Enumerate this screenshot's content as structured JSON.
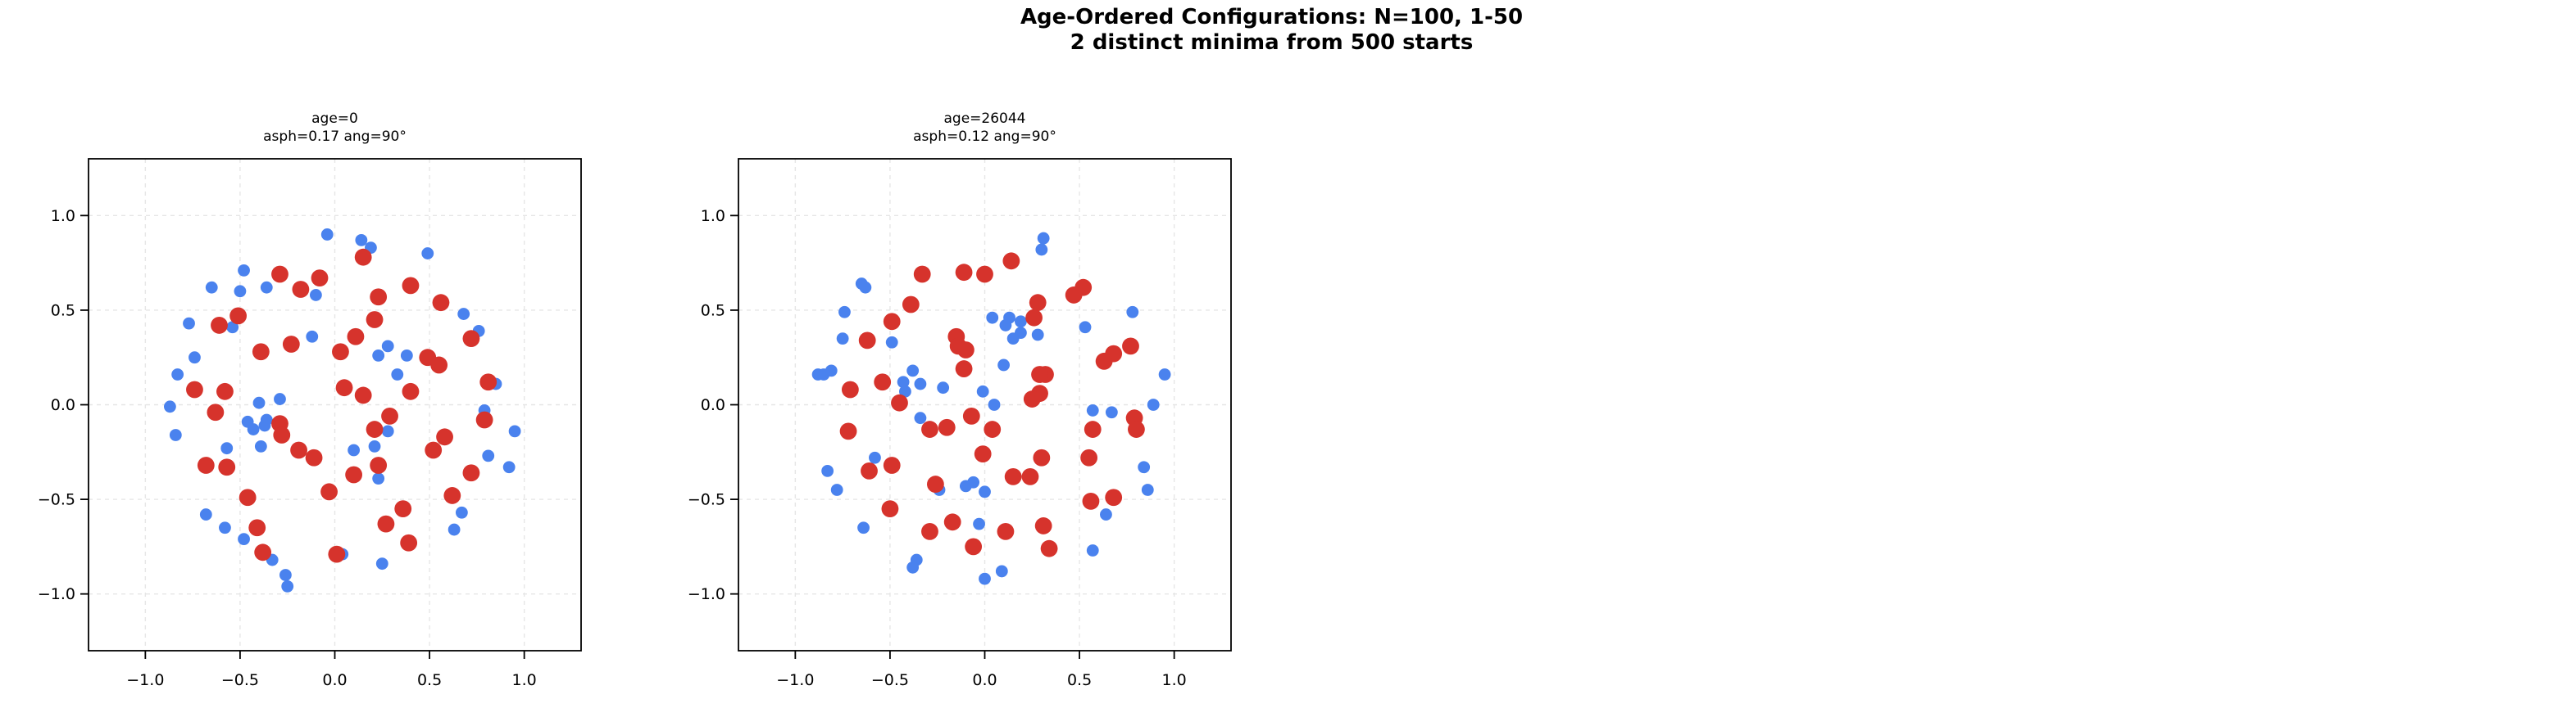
{
  "figure": {
    "title_line1": "Age-Ordered Configurations: N=100, 1-50",
    "title_line2": "2 distinct minima from 500 starts",
    "background_color": "#ffffff",
    "point_color_red": "#d6332c",
    "point_color_blue": "#4a82ee"
  },
  "chart_data": [
    {
      "type": "scatter",
      "title_line1": "age=0",
      "title_line2": "asph=0.17 ang=90°",
      "xlim": [
        -1.3,
        1.3
      ],
      "ylim": [
        -1.3,
        1.3
      ],
      "xticks": [
        -1.0,
        -0.5,
        0.0,
        0.5,
        1.0
      ],
      "yticks": [
        1.0,
        0.5,
        0.0,
        -0.5,
        -1.0
      ],
      "xtick_labels": [
        "−1.0",
        "−0.5",
        "0.0",
        "0.5",
        "1.0"
      ],
      "ytick_labels": [
        "1.0",
        "0.5",
        "0.0",
        "−0.5",
        "−1.0"
      ],
      "grid": true,
      "series": [
        {
          "name": "blue-points",
          "color": "#4a82ee",
          "marker_px": 7.4,
          "points": [
            [
              -0.04,
              0.9
            ],
            [
              -0.48,
              0.71
            ],
            [
              -0.65,
              0.62
            ],
            [
              -0.5,
              0.6
            ],
            [
              -0.36,
              0.62
            ],
            [
              -0.1,
              0.58
            ],
            [
              -0.77,
              0.43
            ],
            [
              -0.54,
              0.41
            ],
            [
              -0.12,
              0.36
            ],
            [
              -0.74,
              0.25
            ],
            [
              -0.83,
              0.16
            ],
            [
              -0.87,
              -0.01
            ],
            [
              -0.4,
              0.01
            ],
            [
              -0.29,
              0.03
            ],
            [
              0.14,
              0.87
            ],
            [
              0.19,
              0.83
            ],
            [
              0.49,
              0.8
            ],
            [
              0.68,
              0.48
            ],
            [
              0.76,
              0.39
            ],
            [
              0.28,
              0.31
            ],
            [
              0.23,
              0.26
            ],
            [
              0.38,
              0.26
            ],
            [
              0.33,
              0.16
            ],
            [
              0.85,
              0.11
            ],
            [
              -0.46,
              -0.09
            ],
            [
              -0.43,
              -0.13
            ],
            [
              -0.36,
              -0.08
            ],
            [
              -0.37,
              -0.11
            ],
            [
              -0.84,
              -0.16
            ],
            [
              -0.57,
              -0.23
            ],
            [
              -0.39,
              -0.22
            ],
            [
              -0.68,
              -0.58
            ],
            [
              -0.58,
              -0.65
            ],
            [
              -0.48,
              -0.71
            ],
            [
              -0.33,
              -0.82
            ],
            [
              -0.26,
              -0.9
            ],
            [
              -0.25,
              -0.96
            ],
            [
              0.1,
              -0.24
            ],
            [
              0.21,
              -0.22
            ],
            [
              0.28,
              -0.14
            ],
            [
              0.79,
              -0.03
            ],
            [
              0.81,
              -0.27
            ],
            [
              0.95,
              -0.14
            ],
            [
              0.92,
              -0.33
            ],
            [
              0.23,
              -0.39
            ],
            [
              0.67,
              -0.57
            ],
            [
              0.63,
              -0.66
            ],
            [
              0.25,
              -0.84
            ],
            [
              0.04,
              -0.79
            ]
          ]
        },
        {
          "name": "red-points",
          "color": "#d6332c",
          "marker_px": 10.4,
          "points": [
            [
              -0.29,
              0.69
            ],
            [
              -0.08,
              0.67
            ],
            [
              -0.18,
              0.61
            ],
            [
              -0.51,
              0.47
            ],
            [
              -0.61,
              0.42
            ],
            [
              -0.39,
              0.28
            ],
            [
              -0.23,
              0.32
            ],
            [
              -0.74,
              0.08
            ],
            [
              -0.58,
              0.07
            ],
            [
              0.15,
              0.78
            ],
            [
              0.4,
              0.63
            ],
            [
              0.23,
              0.57
            ],
            [
              0.56,
              0.54
            ],
            [
              0.21,
              0.45
            ],
            [
              0.72,
              0.35
            ],
            [
              0.11,
              0.36
            ],
            [
              0.03,
              0.28
            ],
            [
              0.49,
              0.25
            ],
            [
              0.55,
              0.21
            ],
            [
              0.81,
              0.12
            ],
            [
              0.05,
              0.09
            ],
            [
              0.15,
              0.05
            ],
            [
              0.4,
              0.07
            ],
            [
              -0.63,
              -0.04
            ],
            [
              -0.29,
              -0.1
            ],
            [
              -0.28,
              -0.16
            ],
            [
              -0.19,
              -0.24
            ],
            [
              -0.11,
              -0.28
            ],
            [
              -0.68,
              -0.32
            ],
            [
              -0.57,
              -0.33
            ],
            [
              -0.46,
              -0.49
            ],
            [
              -0.03,
              -0.46
            ],
            [
              -0.41,
              -0.65
            ],
            [
              -0.38,
              -0.78
            ],
            [
              0.29,
              -0.06
            ],
            [
              0.21,
              -0.13
            ],
            [
              0.79,
              -0.08
            ],
            [
              0.58,
              -0.17
            ],
            [
              0.52,
              -0.24
            ],
            [
              0.1,
              -0.37
            ],
            [
              0.23,
              -0.32
            ],
            [
              0.72,
              -0.36
            ],
            [
              0.62,
              -0.48
            ],
            [
              0.36,
              -0.55
            ],
            [
              0.27,
              -0.63
            ],
            [
              0.39,
              -0.73
            ],
            [
              0.01,
              -0.79
            ]
          ]
        }
      ]
    },
    {
      "type": "scatter",
      "title_line1": "age=26044",
      "title_line2": "asph=0.12 ang=90°",
      "xlim": [
        -1.3,
        1.3
      ],
      "ylim": [
        -1.3,
        1.3
      ],
      "xticks": [
        -1.0,
        -0.5,
        0.0,
        0.5,
        1.0
      ],
      "yticks": [
        1.0,
        0.5,
        0.0,
        -0.5,
        -1.0
      ],
      "xtick_labels": [
        "−1.0",
        "−0.5",
        "0.0",
        "0.5",
        "1.0"
      ],
      "ytick_labels": [
        "1.0",
        "0.5",
        "0.0",
        "−0.5",
        "−1.0"
      ],
      "grid": true,
      "series": [
        {
          "name": "blue-points",
          "color": "#4a82ee",
          "marker_px": 7.4,
          "points": [
            [
              -0.65,
              0.64
            ],
            [
              -0.63,
              0.62
            ],
            [
              -0.74,
              0.49
            ],
            [
              -0.75,
              0.35
            ],
            [
              -0.49,
              0.33
            ],
            [
              -0.88,
              0.16
            ],
            [
              -0.85,
              0.16
            ],
            [
              -0.81,
              0.18
            ],
            [
              -0.38,
              0.18
            ],
            [
              -0.43,
              0.12
            ],
            [
              -0.42,
              0.07
            ],
            [
              -0.34,
              0.11
            ],
            [
              -0.22,
              0.09
            ],
            [
              -0.01,
              0.07
            ],
            [
              0.31,
              0.88
            ],
            [
              0.3,
              0.82
            ],
            [
              0.78,
              0.49
            ],
            [
              0.04,
              0.46
            ],
            [
              0.13,
              0.46
            ],
            [
              0.11,
              0.42
            ],
            [
              0.19,
              0.44
            ],
            [
              0.19,
              0.38
            ],
            [
              0.15,
              0.35
            ],
            [
              0.28,
              0.37
            ],
            [
              0.53,
              0.41
            ],
            [
              0.95,
              0.16
            ],
            [
              0.1,
              0.21
            ],
            [
              0.89,
              0.0
            ],
            [
              0.05,
              0.0
            ],
            [
              -0.34,
              -0.07
            ],
            [
              -0.58,
              -0.28
            ],
            [
              -0.83,
              -0.35
            ],
            [
              -0.78,
              -0.45
            ],
            [
              -0.24,
              -0.45
            ],
            [
              -0.1,
              -0.43
            ],
            [
              -0.06,
              -0.41
            ],
            [
              0.0,
              -0.46
            ],
            [
              -0.64,
              -0.65
            ],
            [
              -0.03,
              -0.63
            ],
            [
              -0.36,
              -0.82
            ],
            [
              -0.38,
              -0.86
            ],
            [
              0.0,
              -0.92
            ],
            [
              0.57,
              -0.03
            ],
            [
              0.67,
              -0.04
            ],
            [
              0.84,
              -0.33
            ],
            [
              0.86,
              -0.45
            ],
            [
              0.64,
              -0.58
            ],
            [
              0.57,
              -0.77
            ],
            [
              0.09,
              -0.88
            ]
          ]
        },
        {
          "name": "red-points",
          "color": "#d6332c",
          "marker_px": 10.4,
          "points": [
            [
              -0.33,
              0.69
            ],
            [
              -0.11,
              0.7
            ],
            [
              0.0,
              0.69
            ],
            [
              -0.39,
              0.53
            ],
            [
              -0.49,
              0.44
            ],
            [
              -0.62,
              0.34
            ],
            [
              -0.15,
              0.36
            ],
            [
              -0.14,
              0.31
            ],
            [
              -0.1,
              0.29
            ],
            [
              -0.71,
              0.08
            ],
            [
              -0.11,
              0.19
            ],
            [
              -0.54,
              0.12
            ],
            [
              -0.45,
              0.01
            ],
            [
              0.14,
              0.76
            ],
            [
              0.52,
              0.62
            ],
            [
              0.47,
              0.58
            ],
            [
              0.28,
              0.54
            ],
            [
              0.26,
              0.46
            ],
            [
              0.77,
              0.31
            ],
            [
              0.68,
              0.27
            ],
            [
              0.63,
              0.23
            ],
            [
              0.32,
              0.16
            ],
            [
              0.29,
              0.16
            ],
            [
              0.29,
              0.06
            ],
            [
              0.25,
              0.03
            ],
            [
              -0.29,
              -0.13
            ],
            [
              -0.2,
              -0.12
            ],
            [
              -0.07,
              -0.06
            ],
            [
              -0.72,
              -0.14
            ],
            [
              -0.01,
              -0.26
            ],
            [
              -0.61,
              -0.35
            ],
            [
              -0.49,
              -0.32
            ],
            [
              -0.26,
              -0.42
            ],
            [
              -0.5,
              -0.55
            ],
            [
              -0.29,
              -0.67
            ],
            [
              -0.17,
              -0.62
            ],
            [
              -0.06,
              -0.75
            ],
            [
              0.04,
              -0.13
            ],
            [
              0.57,
              -0.13
            ],
            [
              0.79,
              -0.07
            ],
            [
              0.8,
              -0.13
            ],
            [
              0.3,
              -0.28
            ],
            [
              0.55,
              -0.28
            ],
            [
              0.15,
              -0.38
            ],
            [
              0.24,
              -0.38
            ],
            [
              0.56,
              -0.51
            ],
            [
              0.68,
              -0.49
            ],
            [
              0.11,
              -0.67
            ],
            [
              0.31,
              -0.64
            ],
            [
              0.34,
              -0.76
            ]
          ]
        }
      ]
    }
  ]
}
